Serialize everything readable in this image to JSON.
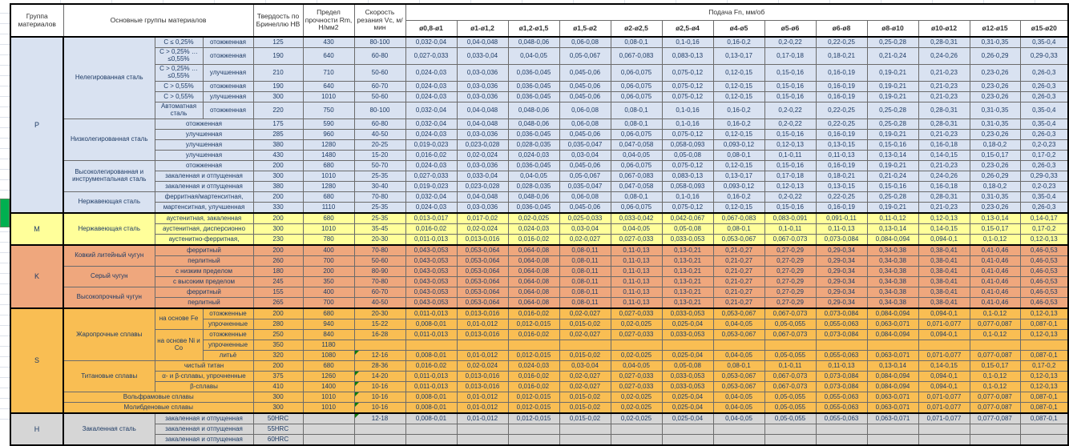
{
  "colors": {
    "bands": {
      "P": "#D9E2F1",
      "M": "#FFFF9A",
      "K": "#EFA77D",
      "S": "#F9BE53",
      "H": "#D6D6D6"
    },
    "note_green": "#0E7A0B",
    "highlight_green": "#00B050",
    "text_navy": "#1F3C66"
  },
  "table": {
    "headers": {
      "group": "Группа материалов",
      "main_groups": "Основные группы материалов",
      "hardness": "Твердость по Бринеллю НВ",
      "strength": "Предел прочности Rm, Н/мм2",
      "speed": "Скорость резания Vc, м/мин",
      "feed": "Подача Fn, мм/об",
      "diameters": [
        "ø0,8-ø1",
        "ø1-ø1,2",
        "ø1,2-ø1,5",
        "ø1,5-ø2",
        "ø2-ø2,5",
        "ø2,5-ø4",
        "ø4-ø5",
        "ø5-ø6",
        "ø6-ø8",
        "ø8-ø10",
        "ø10-ø12",
        "ø12-ø15",
        "ø15-ø20"
      ]
    },
    "feed_patterns": {
      "A": [
        "0,032-0,04",
        "0,04-0,048",
        "0,048-0,06",
        "0,06-0,08",
        "0,08-0,1",
        "0,1-0,16",
        "0,16-0,2",
        "0,2-0,22",
        "0,22-0,25",
        "0,25-0,28",
        "0,28-0,31",
        "0,31-0,35",
        "0,35-0,4"
      ],
      "B": [
        "0,027-0,033",
        "0,033-0,04",
        "0,04-0,05",
        "0,05-0,067",
        "0,067-0,083",
        "0,083-0,13",
        "0,13-0,17",
        "0,17-0,18",
        "0,18-0,21",
        "0,21-0,24",
        "0,24-0,26",
        "0,26-0,29",
        "0,29-0,33"
      ],
      "C": [
        "0,024-0,03",
        "0,03-0,036",
        "0,036-0,045",
        "0,045-0,06",
        "0,06-0,075",
        "0,075-0,12",
        "0,12-0,15",
        "0,15-0,16",
        "0,16-0,19",
        "0,19-0,21",
        "0,21-0,23",
        "0,23-0,26",
        "0,26-0,3"
      ],
      "D": [
        "0,019-0,023",
        "0,023-0,028",
        "0,028-0,035",
        "0,035-0,047",
        "0,047-0,058",
        "0,058-0,093",
        "0,093-0,12",
        "0,12-0,13",
        "0,13-0,15",
        "0,15-0,16",
        "0,16-0,18",
        "0,18-0,2",
        "0,2-0,23"
      ],
      "E": [
        "0,016-0,02",
        "0,02-0,024",
        "0,024-0,03",
        "0,03-0,04",
        "0,04-0,05",
        "0,05-0,08",
        "0,08-0,1",
        "0,1-0,11",
        "0,11-0,13",
        "0,13-0,14",
        "0,14-0,15",
        "0,15-0,17",
        "0,17-0,2"
      ],
      "F": [
        "0,013-0,017",
        "0,017-0,02",
        "0,02-0,025",
        "0,025-0,033",
        "0,033-0,042",
        "0,042-0,067",
        "0,067-0,083",
        "0,083-0,091",
        "0,091-0,11",
        "0,11-0,12",
        "0,12-0,13",
        "0,13-0,14",
        "0,14-0,17"
      ],
      "G": [
        "0,011-0,013",
        "0,013-0,016",
        "0,016-0,02",
        "0,02-0,027",
        "0,027-0,033",
        "0,033-0,053",
        "0,053-0,067",
        "0,067-0,073",
        "0,073-0,084",
        "0,084-0,094",
        "0,094-0,1",
        "0,1-0,12",
        "0,12-0,13"
      ],
      "H": [
        "0,043-0,053",
        "0,053-0,064",
        "0,064-0,08",
        "0,08-0,11",
        "0,11-0,13",
        "0,13-0,21",
        "0,21-0,27",
        "0,27-0,29",
        "0,29-0,34",
        "0,34-0,38",
        "0,38-0,41",
        "0,41-0,46",
        "0,46-0,53"
      ],
      "I": [
        "0,008-0,01",
        "0,01-0,012",
        "0,012-0,015",
        "0,015-0,02",
        "0,02-0,025",
        "0,025-0,04",
        "0,04-0,05",
        "0,05-0,055",
        "0,055-0,063",
        "0,063-0,071",
        "0,071-0,077",
        "0,077-0,087",
        "0,087-0,1"
      ],
      "Z": [
        "",
        "",
        "",
        "",
        "",
        "",
        "",
        "",
        "",
        "",
        "",
        "",
        ""
      ]
    },
    "rows": [
      {
        "band": "P",
        "group": {
          "label": "P",
          "rows": 15
        },
        "cells": [
          {
            "text": "Нелегированная сталь",
            "rs": 6
          },
          {
            "text": "С ≤ 0,25%"
          },
          {
            "text": "отожженная"
          }
        ],
        "hb": "125",
        "rm": "430",
        "vc": "80-100",
        "feeds": "A"
      },
      {
        "tall": true,
        "cells": [
          {
            "text": "С > 0,25% … ≤0,55%"
          },
          {
            "text": "отожженная"
          }
        ],
        "hb": "190",
        "rm": "640",
        "vc": "60-80",
        "feeds": "B"
      },
      {
        "tall": true,
        "cells": [
          {
            "text": "С > 0,25% … ≤0,55%"
          },
          {
            "text": "улучшенная"
          }
        ],
        "hb": "210",
        "rm": "710",
        "vc": "50-60",
        "feeds": "C"
      },
      {
        "cells": [
          {
            "text": "С > 0,55%"
          },
          {
            "text": "отожженная"
          }
        ],
        "hb": "190",
        "rm": "640",
        "vc": "60-70",
        "feeds": "C"
      },
      {
        "cells": [
          {
            "text": "С > 0,55%"
          },
          {
            "text": "улучшенная"
          }
        ],
        "hb": "300",
        "rm": "1010",
        "vc": "50-60",
        "feeds": "C"
      },
      {
        "tall": true,
        "cells": [
          {
            "text": "Автоматная сталь"
          },
          {
            "text": "отожженная"
          }
        ],
        "hb": "220",
        "rm": "750",
        "vc": "80-100",
        "feeds": "A"
      },
      {
        "cells": [
          {
            "text": "Низколегированная сталь",
            "rs": 4
          },
          {
            "text": "отожженная",
            "cs": 2
          }
        ],
        "hb": "175",
        "rm": "590",
        "vc": "60-80",
        "feeds": "A"
      },
      {
        "cells": [
          {
            "text": "улучшенная",
            "cs": 2
          }
        ],
        "hb": "285",
        "rm": "960",
        "vc": "40-50",
        "feeds": "C"
      },
      {
        "cells": [
          {
            "text": "улучшенная",
            "cs": 2
          }
        ],
        "hb": "380",
        "rm": "1280",
        "vc": "20-25",
        "feeds": "D"
      },
      {
        "cells": [
          {
            "text": "улучшенная",
            "cs": 2
          }
        ],
        "hb": "430",
        "rm": "1480",
        "vc": "15-20",
        "feeds": "E"
      },
      {
        "cells": [
          {
            "text": "Высоколегированная и инструментальная сталь",
            "rs": 3
          },
          {
            "text": "отожженная",
            "cs": 2
          }
        ],
        "hb": "200",
        "rm": "680",
        "vc": "50-70",
        "feeds": "C"
      },
      {
        "cells": [
          {
            "text": "закаленная и отпущенная",
            "cs": 2
          }
        ],
        "hb": "300",
        "rm": "1010",
        "vc": "25-35",
        "feeds": "B"
      },
      {
        "cells": [
          {
            "text": "закаленная и отпущенная",
            "cs": 2
          }
        ],
        "hb": "380",
        "rm": "1280",
        "vc": "30-40",
        "feeds": "D"
      },
      {
        "cells": [
          {
            "text": "Нержавеющая сталь",
            "rs": 2
          },
          {
            "text": "ферритная/мартенситная,",
            "cs": 2
          }
        ],
        "hb": "200",
        "rm": "680",
        "vc": "70-80",
        "feeds": "A"
      },
      {
        "cells": [
          {
            "text": "мартенситная, улучшенная",
            "cs": 2
          }
        ],
        "hb": "330",
        "rm": "1110",
        "vc": "25-35",
        "feeds": "C"
      },
      {
        "band": "M",
        "group": {
          "label": "M",
          "rows": 3
        },
        "cells": [
          {
            "text": "Нержавеющая сталь",
            "rs": 3
          },
          {
            "text": "аустенитная, закаленная",
            "cs": 2
          }
        ],
        "hb": "200",
        "rm": "680",
        "vc": "25-35",
        "feeds": "F"
      },
      {
        "cells": [
          {
            "text": "аустенитная, дисперсионно",
            "cs": 2
          }
        ],
        "hb": "300",
        "rm": "1010",
        "vc": "35-45",
        "feeds": "E"
      },
      {
        "cells": [
          {
            "text": "аустенитно-ферритная,",
            "cs": 2
          }
        ],
        "hb": "230",
        "rm": "780",
        "vc": "20-30",
        "feeds": "G"
      },
      {
        "band": "K",
        "group": {
          "label": "K",
          "rows": 6
        },
        "cells": [
          {
            "text": "Ковкий литейный чугун",
            "rs": 2
          },
          {
            "text": "ферритный",
            "cs": 2
          }
        ],
        "hb": "200",
        "rm": "400",
        "vc": "70-80",
        "feeds": "H"
      },
      {
        "cells": [
          {
            "text": "перлитный",
            "cs": 2
          }
        ],
        "hb": "260",
        "rm": "700",
        "vc": "50-60",
        "feeds": "H"
      },
      {
        "cells": [
          {
            "text": "Серый чугун",
            "rs": 2
          },
          {
            "text": "с низким пределом",
            "cs": 2
          }
        ],
        "hb": "180",
        "rm": "200",
        "vc": "80-90",
        "feeds": "H"
      },
      {
        "cells": [
          {
            "text": "с высоким пределом",
            "cs": 2
          }
        ],
        "hb": "245",
        "rm": "350",
        "vc": "70-80",
        "feeds": "H"
      },
      {
        "cells": [
          {
            "text": "Высокопрочный чугун",
            "rs": 2
          },
          {
            "text": "ферритный",
            "cs": 2
          }
        ],
        "hb": "155",
        "rm": "400",
        "vc": "60-70",
        "feeds": "H"
      },
      {
        "cells": [
          {
            "text": "перлитный",
            "cs": 2
          }
        ],
        "hb": "265",
        "rm": "700",
        "vc": "40-50",
        "feeds": "H"
      },
      {
        "band": "S",
        "group": {
          "label": "S",
          "rows": 10
        },
        "cells": [
          {
            "text": "Жаропрочные сплавы",
            "rs": 5
          },
          {
            "text": "на основе Fe",
            "rs": 2
          },
          {
            "text": "отожженные"
          }
        ],
        "hb": "200",
        "rm": "680",
        "vc": "20-30",
        "feeds": "G"
      },
      {
        "cells": [
          {
            "text": "упрочненные"
          }
        ],
        "hb": "280",
        "rm": "940",
        "vc": "15-22",
        "feeds": "I"
      },
      {
        "cells": [
          {
            "text": "на основе Ni и Co",
            "rs": 3
          },
          {
            "text": "отожженные"
          }
        ],
        "hb": "250",
        "rm": "840",
        "vc": "16-28",
        "feeds": "G"
      },
      {
        "cells": [
          {
            "text": "упрочненные"
          }
        ],
        "hb": "350",
        "rm": "1180",
        "vc": "",
        "feeds": "Z"
      },
      {
        "cells": [
          {
            "text": "литьё"
          }
        ],
        "hb": "320",
        "rm": "1080",
        "vc": "12-16",
        "note": true,
        "feeds": "I"
      },
      {
        "cells": [
          {
            "text": "Титановые сплавы",
            "rs": 3
          },
          {
            "text": "чистый титан",
            "cs": 2
          }
        ],
        "hb": "200",
        "rm": "680",
        "vc": "28-36",
        "feeds": "E"
      },
      {
        "cells": [
          {
            "text": "α- и β-сплавы, упрочненные",
            "cs": 2
          }
        ],
        "hb": "375",
        "rm": "1260",
        "vc": "14-20",
        "note": true,
        "feeds": "G"
      },
      {
        "cells": [
          {
            "text": "β-сплавы",
            "cs": 2
          }
        ],
        "hb": "410",
        "rm": "1400",
        "vc": "10-16",
        "note": true,
        "feeds": "G"
      },
      {
        "cells": [
          {
            "text": "Вольфрамовые сплавы",
            "cs": 3
          }
        ],
        "hb": "300",
        "rm": "1010",
        "vc": "10-16",
        "note": true,
        "feeds": "I"
      },
      {
        "cells": [
          {
            "text": "Молибденовые сплавы",
            "cs": 3
          }
        ],
        "hb": "300",
        "rm": "1010",
        "vc": "10-16",
        "note": true,
        "feeds": "I"
      },
      {
        "band": "H",
        "group": {
          "label": "H",
          "rows": 3
        },
        "cells": [
          {
            "text": "Закаленная сталь",
            "rs": 3
          },
          {
            "text": "закаленная и отпущенная",
            "cs": 2
          }
        ],
        "hb": "50HRC",
        "rm": "",
        "vc": "12-18",
        "note": true,
        "feeds": "I"
      },
      {
        "cells": [
          {
            "text": "закаленная и отпущенная",
            "cs": 2
          }
        ],
        "hb": "55HRC",
        "rm": "",
        "vc": "",
        "feeds": "Z"
      },
      {
        "cells": [
          {
            "text": "закаленная и отпущенная",
            "cs": 2
          }
        ],
        "hb": "60HRC",
        "rm": "",
        "vc": "",
        "feeds": "Z"
      }
    ]
  }
}
